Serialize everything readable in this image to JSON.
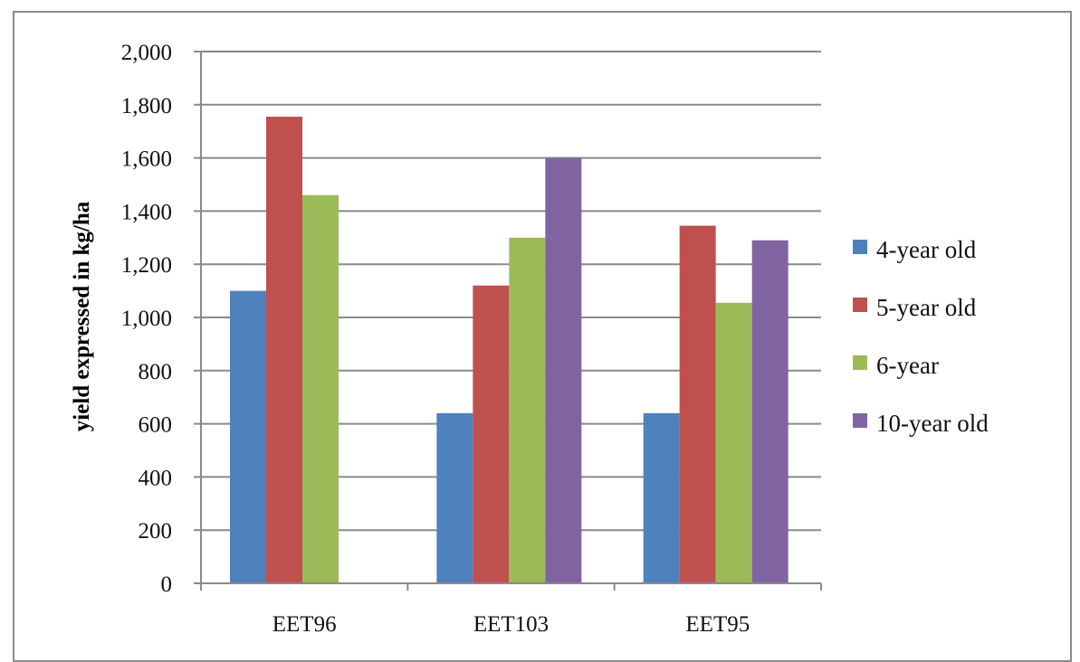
{
  "chart_data": {
    "type": "bar",
    "title": "",
    "xlabel": "",
    "ylabel": "yield expressed in kg/ha",
    "categories": [
      "EET96",
      "EET103",
      "EET95"
    ],
    "ylim": [
      0,
      2000
    ],
    "yticks": [
      0,
      200,
      400,
      600,
      800,
      1000,
      1200,
      1400,
      1600,
      1800,
      2000
    ],
    "ytick_labels": [
      "0",
      "200",
      "400",
      "600",
      "800",
      "1,000",
      "1,200",
      "1,400",
      "1,600",
      "1,800",
      "2,000"
    ],
    "grid": true,
    "legend_position": "right",
    "series": [
      {
        "name": "4-year old",
        "color": "#4f81bd",
        "values": [
          1100,
          640,
          640
        ]
      },
      {
        "name": "5-year old",
        "color": "#c0504d",
        "values": [
          1755,
          1120,
          1345
        ]
      },
      {
        "name": "6-year",
        "color": "#9bbb59",
        "values": [
          1460,
          1300,
          1055
        ]
      },
      {
        "name": "10-year old",
        "color": "#8064a2",
        "values": [
          null,
          1600,
          1290
        ]
      }
    ]
  }
}
